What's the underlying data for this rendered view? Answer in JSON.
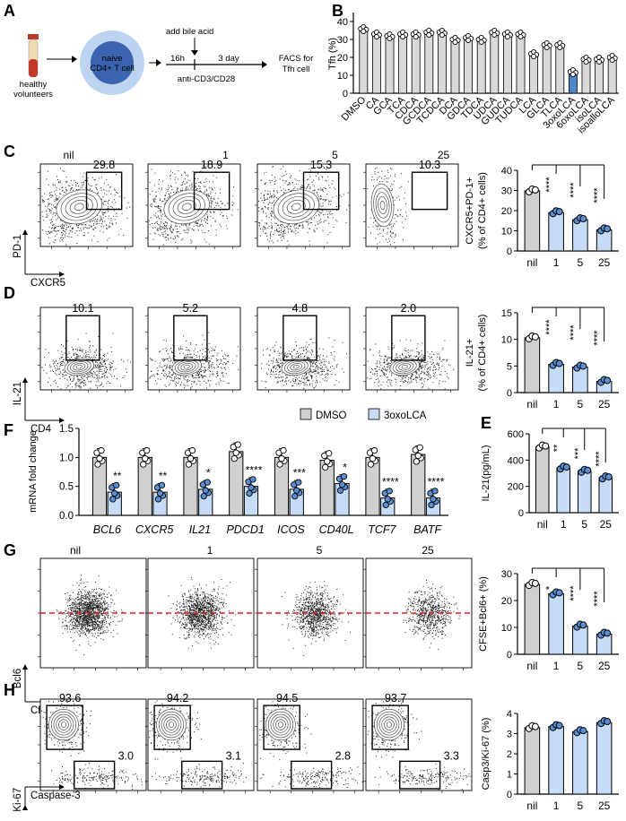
{
  "colors": {
    "gray": "#d0d0d0",
    "blue": "#c6dcf6",
    "blue_strong": "#4f86c6",
    "dot_blue": "#5a8fd4",
    "dash_red": "#e02020"
  },
  "panelA": {
    "letter": "A",
    "volunteers": [
      "healthy",
      "volunteers"
    ],
    "cell": [
      "naive",
      "CD4+ T cell"
    ],
    "add_bile_acid": "add bile acid",
    "t1": "16h",
    "t2": "3 day",
    "stim": "anti-CD3/CD28",
    "facs": [
      "FACS for",
      "Tfh cell"
    ]
  },
  "panelB": {
    "letter": "B",
    "ylabel": "Tfh (%)",
    "yticks": [
      "0",
      "10",
      "20",
      "30",
      "40"
    ],
    "chart_data": {
      "type": "bar",
      "categories": [
        "DMSO",
        "CA",
        "GCA",
        "TCA",
        "CDCA",
        "GCDCA",
        "TCDCA",
        "DCA",
        "GDCA",
        "TDCA",
        "UDCA",
        "GUDCA",
        "TUDCA",
        "LCA",
        "GLCA",
        "TLCA",
        "3oxoLCA",
        "6oxoLCA",
        "isoLCA",
        "isoalloLCA"
      ],
      "values": [
        35,
        32,
        31,
        32,
        32,
        33,
        33,
        29,
        30,
        29,
        33,
        32,
        32,
        21,
        26,
        26,
        11,
        18,
        18,
        19
      ],
      "ylim": [
        0,
        45
      ]
    }
  },
  "flow_conditions": [
    "nil",
    "1",
    "5",
    "25"
  ],
  "panelC": {
    "letter": "C",
    "gates": [
      "29.8",
      "18.9",
      "15.3",
      "10.3"
    ],
    "yaxis": "PD-1",
    "xaxis": "CXCR5",
    "ylabel": [
      "CXCR5+PD-1+",
      "(% of CD4+ cells)"
    ],
    "yticks": [
      "0",
      "10",
      "20",
      "30",
      "40"
    ],
    "sig": [
      "****",
      "****",
      "****"
    ],
    "xticks": [
      "nil",
      "1",
      "5",
      "25"
    ],
    "chart_data": {
      "type": "bar",
      "categories": [
        "nil",
        "1",
        "5",
        "25"
      ],
      "values": [
        29.8,
        19,
        15.5,
        10.5
      ],
      "ylim": [
        0,
        40
      ]
    }
  },
  "panelD": {
    "letter": "D",
    "gates": [
      "10.1",
      "5.2",
      "4.8",
      "2.0"
    ],
    "yaxis": "IL-21",
    "xaxis": "CD4",
    "ylabel": [
      "IL-21+",
      "(% of CD4+ cells)"
    ],
    "yticks": [
      "0",
      "5",
      "10",
      "15"
    ],
    "sig": [
      "****",
      "****",
      "****"
    ],
    "xticks": [
      "nil",
      "1",
      "5",
      "25"
    ],
    "chart_data": {
      "type": "bar",
      "categories": [
        "nil",
        "1",
        "5",
        "25"
      ],
      "values": [
        10.3,
        5.3,
        4.8,
        2.1
      ],
      "ylim": [
        0,
        15
      ]
    }
  },
  "panelF": {
    "letter": "F",
    "ylabel": "mRNA fold change",
    "legend": [
      "DMSO",
      "3oxoLCA"
    ],
    "yticks": [
      "0.0",
      "0.5",
      "1.0",
      "1.5"
    ],
    "genes": [
      "BCL6",
      "CXCR5",
      "IL21",
      "PDCD1",
      "ICOS",
      "CD40L",
      "TCF7",
      "BATF"
    ],
    "sig": [
      "**",
      "**",
      "*",
      "****",
      "***",
      "*",
      "****",
      "****"
    ],
    "chart_data": {
      "type": "bar",
      "categories": [
        "BCL6",
        "CXCR5",
        "IL21",
        "PDCD1",
        "ICOS",
        "CD40L",
        "TCF7",
        "BATF"
      ],
      "series": [
        {
          "name": "DMSO",
          "values": [
            1.0,
            1.0,
            1.0,
            1.1,
            1.0,
            0.95,
            1.0,
            1.05
          ]
        },
        {
          "name": "3oxoLCA",
          "values": [
            0.4,
            0.4,
            0.45,
            0.5,
            0.45,
            0.55,
            0.3,
            0.3
          ]
        }
      ],
      "ylim": [
        0,
        1.5
      ]
    }
  },
  "panelE": {
    "letter": "E",
    "ylabel": "IL-21(pg/mL)",
    "yticks": [
      "0",
      "200",
      "400",
      "600"
    ],
    "sig": [
      "**",
      "***",
      "****"
    ],
    "xticks": [
      "nil",
      "1",
      "5",
      "25"
    ],
    "chart_data": {
      "type": "bar",
      "categories": [
        "nil",
        "1",
        "5",
        "25"
      ],
      "values": [
        500,
        340,
        315,
        265
      ],
      "ylim": [
        0,
        600
      ]
    }
  },
  "panelG": {
    "letter": "G",
    "yaxis": "Bcl6",
    "xaxis": "CFSE",
    "ylabel": "CFSE+Bcl6+ (%)",
    "yticks": [
      "0",
      "10",
      "20",
      "30"
    ],
    "sig": [
      "*",
      "****",
      "****"
    ],
    "xticks": [
      "nil",
      "1",
      "5",
      "25"
    ],
    "chart_data": {
      "type": "bar",
      "categories": [
        "nil",
        "1",
        "5",
        "25"
      ],
      "values": [
        26,
        22.5,
        10.5,
        7.5
      ],
      "ylim": [
        0,
        30
      ]
    }
  },
  "panelH": {
    "letter": "H",
    "gates_top": [
      "93.6",
      "94.2",
      "94.5",
      "93.7"
    ],
    "gates_bottom": [
      "3.0",
      "3.1",
      "2.8",
      "3.3"
    ],
    "yaxis": "Ki-67",
    "xaxis": "Caspase-3",
    "ylabel": "Casp3/Ki-67 (%)",
    "yticks": [
      "0",
      "1",
      "2",
      "3",
      "4"
    ],
    "xticks": [
      "nil",
      "1",
      "5",
      "25"
    ],
    "chart_data": {
      "type": "bar",
      "categories": [
        "nil",
        "1",
        "5",
        "25"
      ],
      "values": [
        3.3,
        3.35,
        3.1,
        3.55
      ],
      "ylim": [
        0,
        4
      ]
    }
  }
}
